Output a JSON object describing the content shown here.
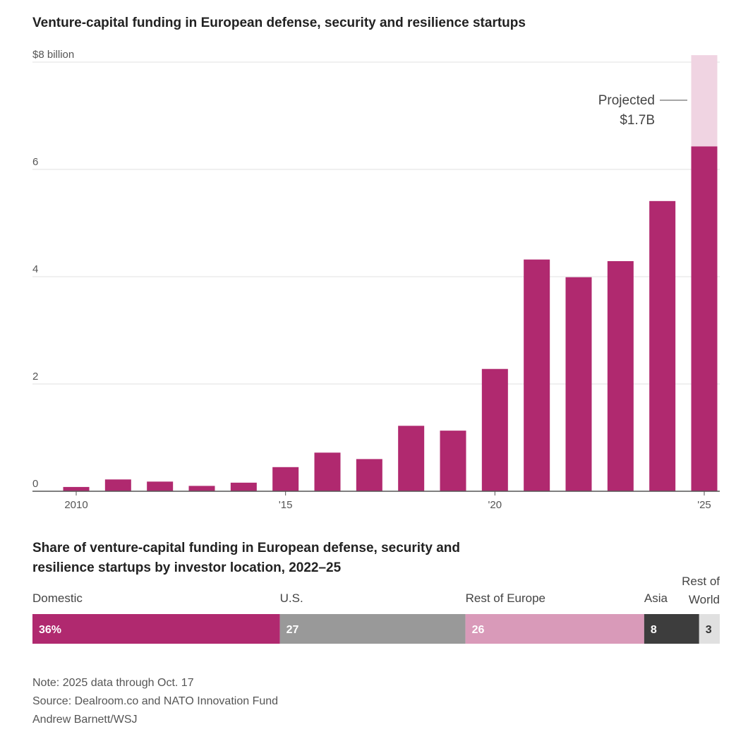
{
  "chart_data": [
    {
      "type": "bar",
      "title": "Venture-capital funding in European defense, security and resilience startups",
      "ylabel": "$ billion",
      "ylim": [
        0,
        8
      ],
      "y_ticks": [
        "0",
        "2",
        "4",
        "6",
        "$8 billion"
      ],
      "y_tick_values": [
        0,
        2,
        4,
        6,
        8
      ],
      "x_tick_labels": [
        "2010",
        "'15",
        "'20",
        "'25"
      ],
      "x_tick_years": [
        2010,
        2015,
        2020,
        2025
      ],
      "categories": [
        2010,
        2011,
        2012,
        2013,
        2014,
        2015,
        2016,
        2017,
        2018,
        2019,
        2020,
        2021,
        2022,
        2023,
        2024,
        2025
      ],
      "values": [
        0.08,
        0.22,
        0.18,
        0.1,
        0.16,
        0.45,
        0.72,
        0.6,
        1.22,
        1.13,
        2.28,
        4.32,
        3.99,
        4.29,
        5.41,
        6.43
      ],
      "projected": {
        "year": 2025,
        "value": 1.7,
        "label": "Projected",
        "value_label": "$1.7B"
      },
      "colors": {
        "bar": "#b0296f",
        "projected": "#f0d4e2"
      },
      "grid": true
    },
    {
      "type": "bar",
      "subtype": "stacked-100",
      "title": "Share of venture-capital funding in European defense, security and resilience startups by investor location, 2022–25",
      "title_line1": "Share of venture-capital funding in European defense, security and",
      "title_line2": "resilience startups by investor location, 2022–25",
      "segments": [
        {
          "name": "Domestic",
          "value": 36,
          "label": "36%",
          "color": "#b0296f",
          "text_color": "#ffffff"
        },
        {
          "name": "U.S.",
          "value": 27,
          "label": "27",
          "color": "#999999",
          "text_color": "#ffffff"
        },
        {
          "name": "Rest of Europe",
          "value": 26,
          "label": "26",
          "color": "#d99ab9",
          "text_color": "#ffffff"
        },
        {
          "name": "Asia",
          "value": 8,
          "label": "8",
          "color": "#3d3d3d",
          "text_color": "#ffffff"
        },
        {
          "name": "Rest of World",
          "name_line1": "Rest of",
          "name_line2": "World",
          "value": 3,
          "label": "3",
          "color": "#e0e0e0",
          "text_color": "#333333"
        }
      ]
    }
  ],
  "notes": {
    "note": "Note: 2025 data through Oct. 17",
    "source": "Source: Dealroom.co and NATO Innovation Fund",
    "credit": "Andrew Barnett/WSJ"
  }
}
